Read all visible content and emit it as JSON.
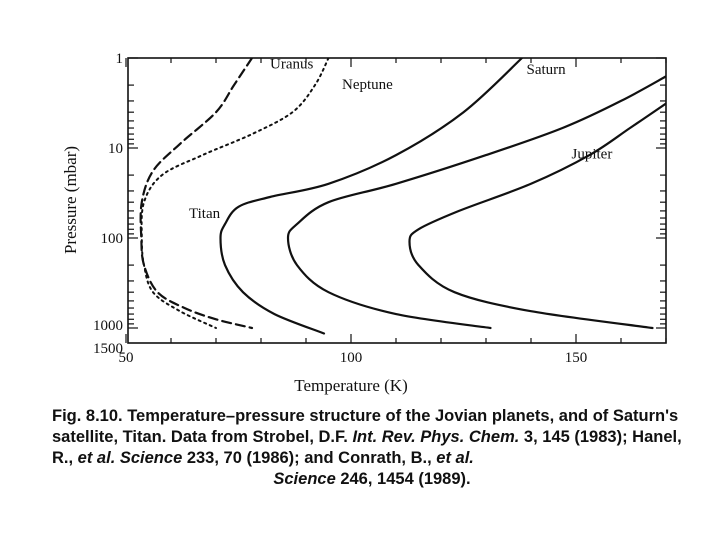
{
  "chart_data": {
    "type": "line",
    "xlabel": "Temperature (K)",
    "ylabel": "Pressure (mbar)",
    "xlim": [
      50,
      170
    ],
    "ylim": [
      1,
      1500
    ],
    "y_scale": "log",
    "y_inverted": true,
    "grid": false,
    "x_ticks": [
      {
        "value": 50,
        "label": "50"
      },
      {
        "value": 100,
        "label": "100"
      },
      {
        "value": 150,
        "label": "150"
      }
    ],
    "y_ticks": [
      {
        "value": 1,
        "label": "1"
      },
      {
        "value": 10,
        "label": "10"
      },
      {
        "value": 100,
        "label": "100"
      },
      {
        "value": 1000,
        "label": "1000"
      },
      {
        "value": 1500,
        "label": "1500"
      }
    ],
    "series": [
      {
        "name": "Uranus",
        "style": "dashed",
        "points": [
          [
            78,
            1
          ],
          [
            74,
            2
          ],
          [
            70,
            4
          ],
          [
            62,
            9
          ],
          [
            56,
            18
          ],
          [
            53.5,
            40
          ],
          [
            53.4,
            100
          ],
          [
            54,
            200
          ],
          [
            57,
            400
          ],
          [
            63,
            600
          ],
          [
            70,
            800
          ],
          [
            78,
            1000
          ]
        ]
      },
      {
        "name": "Neptune",
        "style": "dotted",
        "points": [
          [
            95,
            1
          ],
          [
            92,
            2
          ],
          [
            87,
            4
          ],
          [
            78,
            7
          ],
          [
            67,
            12
          ],
          [
            58,
            20
          ],
          [
            54,
            40
          ],
          [
            53.5,
            100
          ],
          [
            54,
            200
          ],
          [
            56,
            400
          ],
          [
            62,
            650
          ],
          [
            70,
            1000
          ]
        ]
      },
      {
        "name": "Titan",
        "style": "solid",
        "points": [
          [
            138,
            1
          ],
          [
            125,
            4
          ],
          [
            110,
            12
          ],
          [
            95,
            25
          ],
          [
            82,
            35
          ],
          [
            75,
            45
          ],
          [
            72,
            70
          ],
          [
            71,
            100
          ],
          [
            72,
            200
          ],
          [
            76,
            400
          ],
          [
            83,
            700
          ],
          [
            94,
            1150
          ]
        ]
      },
      {
        "name": "Saturn",
        "style": "solid",
        "points": [
          [
            170,
            1.6
          ],
          [
            160,
            3
          ],
          [
            147,
            6
          ],
          [
            130,
            12
          ],
          [
            110,
            25
          ],
          [
            95,
            40
          ],
          [
            88,
            70
          ],
          [
            86,
            100
          ],
          [
            88,
            200
          ],
          [
            95,
            400
          ],
          [
            110,
            700
          ],
          [
            131,
            1000
          ]
        ]
      },
      {
        "name": "Jupiter",
        "style": "solid",
        "points": [
          [
            170,
            3.2
          ],
          [
            162,
            6
          ],
          [
            153,
            12
          ],
          [
            140,
            25
          ],
          [
            124,
            50
          ],
          [
            115,
            80
          ],
          [
            113,
            110
          ],
          [
            115,
            200
          ],
          [
            123,
            400
          ],
          [
            140,
            650
          ],
          [
            167,
            1000
          ]
        ]
      }
    ],
    "annotations": [
      {
        "text": "Uranus",
        "x": 82,
        "y": 1.3
      },
      {
        "text": "Neptune",
        "x": 98,
        "y": 2.2
      },
      {
        "text": "Saturn",
        "x": 139,
        "y": 1.5
      },
      {
        "text": "Jupiter",
        "x": 149,
        "y": 13
      },
      {
        "text": "Titan",
        "x": 64,
        "y": 60
      }
    ]
  },
  "caption": {
    "fig_label": "Fig. 8.10.",
    "text_1": " Temperature–pressure structure of the Jovian planets, and of Saturn's satellite, Titan. Data from Strobel, D.F. ",
    "journal_1": "Int. Rev. Phys. Chem.",
    "vol_1": " 3",
    "text_2": ", 145 (1983); Hanel, R., ",
    "etal_1": "et al.",
    "journal_2": " Science",
    "vol_2": " 233",
    "text_3": ", 70 (1986); and Conrath, B., ",
    "etal_2": "et al.",
    "journal_3": "Science",
    "vol_3": " 246",
    "text_4": ", 1454 (1989)."
  }
}
